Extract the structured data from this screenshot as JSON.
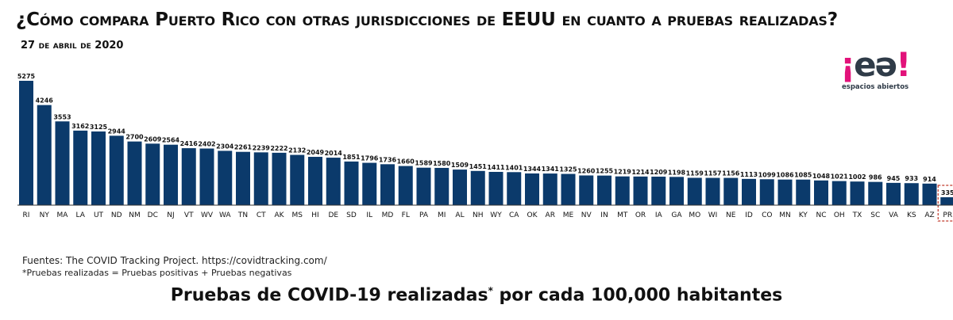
{
  "header": {
    "title": "¿Cómo compara Puerto Rico con otras jurisdicciones de EEUU en cuanto a pruebas realizadas?",
    "date": "27 de abril de 2020"
  },
  "logo": {
    "mark_open": "¡",
    "mark_letters": "eə",
    "mark_close": "!",
    "text": "espacios abiertos"
  },
  "footer": {
    "source": "Fuentes: The COVID Tracking Project. https://covidtracking.com/",
    "note": "*Pruebas realizadas = Pruebas positivas + Pruebas negativas",
    "subtitle": "Pruebas de COVID-19 realizadas",
    "subtitle_mark": "*",
    "subtitle_rest": " por cada 100,000 habitantes"
  },
  "colors": {
    "bar": "#0b3a6b",
    "highlight_border": "#c0392b"
  },
  "chart_data": {
    "type": "bar",
    "categories": [
      "RI",
      "NY",
      "MA",
      "LA",
      "UT",
      "ND",
      "NM",
      "DC",
      "NJ",
      "VT",
      "WV",
      "WA",
      "TN",
      "CT",
      "AK",
      "MS",
      "HI",
      "DE",
      "SD",
      "IL",
      "MD",
      "FL",
      "PA",
      "MI",
      "AL",
      "NH",
      "WY",
      "CA",
      "OK",
      "AR",
      "ME",
      "NV",
      "IN",
      "MT",
      "OR",
      "IA",
      "GA",
      "MO",
      "WI",
      "NE",
      "ID",
      "CO",
      "MN",
      "KY",
      "NC",
      "OH",
      "TX",
      "SC",
      "VA",
      "KS",
      "AZ",
      "PR"
    ],
    "values": [
      5275,
      4246,
      3553,
      3162,
      3125,
      2944,
      2700,
      2609,
      2564,
      2416,
      2402,
      2304,
      2261,
      2239,
      2222,
      2132,
      2049,
      2014,
      1851,
      1796,
      1736,
      1660,
      1589,
      1580,
      1509,
      1451,
      1411,
      1401,
      1344,
      1341,
      1325,
      1260,
      1255,
      1219,
      1214,
      1209,
      1198,
      1159,
      1157,
      1156,
      1113,
      1099,
      1086,
      1085,
      1048,
      1021,
      1002,
      986,
      945,
      933,
      914,
      335
    ],
    "highlight": "PR",
    "ylim": [
      0,
      5275
    ],
    "grid": false,
    "legend": "none"
  }
}
